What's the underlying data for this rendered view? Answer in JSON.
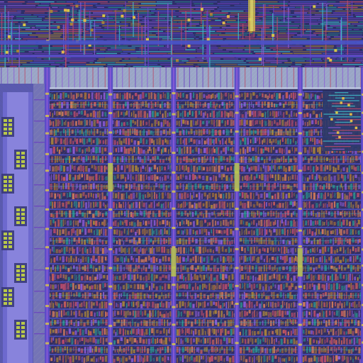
{
  "view": {
    "kind": "ic-layout-view",
    "palette": {
      "substrate": "#2a2a5c",
      "metal1": "#4a52c8",
      "metal2": "#6a3fc0",
      "metal3": "#8a5ad6",
      "poly": "#b84a6a",
      "diffusion": "#a4813a",
      "via": "#d4c44a",
      "contact": "#e0b84a",
      "cyan_route": "#3fb8c8",
      "teal_route": "#2a8a8a",
      "hatch": "#8a8ab0",
      "power_rail": "#5a4ac8",
      "bus_band": "#9aa6c6",
      "io_ring": "#6f6ad0",
      "pad_fill": "#b8c84a",
      "highlight": "#c8d0e8"
    },
    "regions": {
      "top_routing": {
        "rows": 12,
        "density": "high"
      },
      "bus_band": {
        "hatched": true
      },
      "io_column": {
        "pads": 8,
        "hatched": true
      },
      "core_array": {
        "rows": 30,
        "columns": 5,
        "cells_per_row": 46
      },
      "right_routing_block": {
        "density": "medium"
      }
    }
  }
}
